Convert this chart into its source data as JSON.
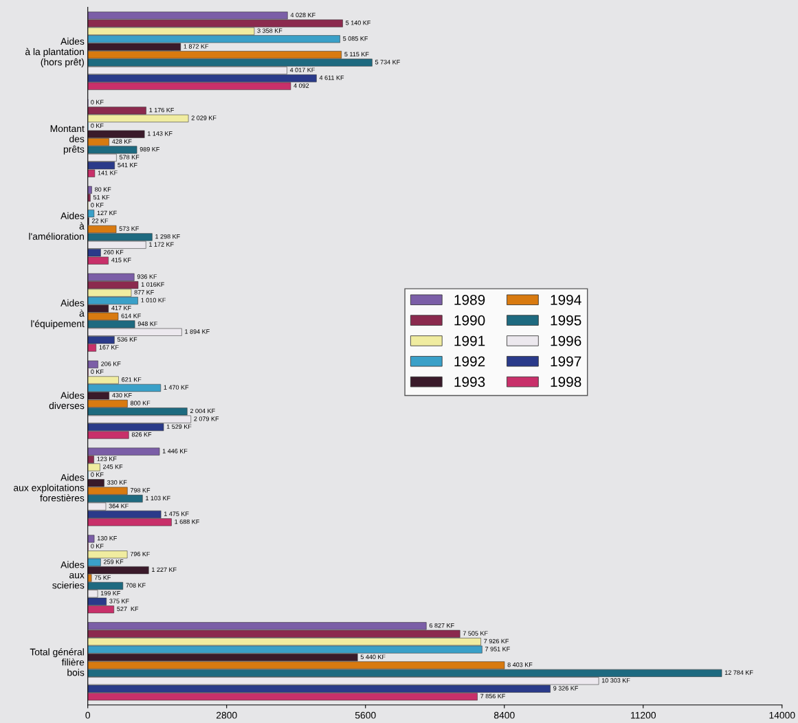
{
  "chart_data": {
    "type": "bar",
    "orientation": "horizontal",
    "categories": [
      "Aides\nà la plantation\n(hors prêt)",
      "Montant\ndes\nprêts",
      "Aides\nà\nl'amélioration",
      "Aides\nà\nl'équipement",
      "Aides\ndiverses",
      "Aides\naux exploitations\nforestières",
      "Aides\naux\nscieries",
      "Total général\nfilière\nbois"
    ],
    "xlim": [
      0,
      14000
    ],
    "xticks": [
      0,
      2800,
      5600,
      8400,
      11200,
      14000
    ],
    "grid": false,
    "legend": "right",
    "series": [
      {
        "name": "1989",
        "color": "#7b5ea7",
        "values": [
          4028,
          0,
          80,
          936,
          206,
          1446,
          130,
          6827
        ],
        "value_labels": [
          "4 028 KF",
          "0 KF",
          "80 KF",
          "936 KF",
          "206 KF",
          "1 446 KF",
          "130 KF",
          "6 827 KF"
        ]
      },
      {
        "name": "1990",
        "color": "#8b2a4e",
        "values": [
          5140,
          1176,
          51,
          1016,
          0,
          123,
          0,
          7505
        ],
        "value_labels": [
          "5 140 KF",
          "1 176 KF",
          "51 KF",
          "1 016KF",
          "0 KF",
          "123 KF",
          "0 KF",
          "7 505 KF"
        ]
      },
      {
        "name": "1991",
        "color": "#f0eca0",
        "values": [
          3358,
          2029,
          0,
          877,
          621,
          245,
          796,
          7926
        ],
        "value_labels": [
          "3 358 KF",
          "2 029 KF",
          "0 KF",
          "877 KF",
          "621 KF",
          "245 KF",
          "796 KF",
          "7 926 KF"
        ]
      },
      {
        "name": "1992",
        "color": "#3aa0c8",
        "values": [
          5085,
          0,
          127,
          1010,
          1470,
          0,
          259,
          7951
        ],
        "value_labels": [
          "5 085 KF",
          "0 KF",
          "127 KF",
          "1 010 KF",
          "1 470 KF",
          "0 KF",
          "259 KF",
          "7 951 KF"
        ]
      },
      {
        "name": "1993",
        "color": "#3a1a2a",
        "values": [
          1872,
          1143,
          22,
          417,
          430,
          330,
          1227,
          5440
        ],
        "value_labels": [
          "1 872 KF",
          "1 143 KF",
          "22 KF",
          "417 KF",
          "430 KF",
          "330 KF",
          "1 227 KF",
          "5 440 KF"
        ]
      },
      {
        "name": "1994",
        "color": "#d87a10",
        "values": [
          5115,
          428,
          573,
          614,
          800,
          798,
          75,
          8403
        ],
        "value_labels": [
          "5 115 KF",
          "428 KF",
          "573 KF",
          "614 KF",
          "800 KF",
          "798 KF",
          "75 KF",
          "8 403 KF"
        ]
      },
      {
        "name": "1995",
        "color": "#1e6a80",
        "values": [
          5734,
          989,
          1298,
          948,
          2004,
          1103,
          708,
          12784
        ],
        "value_labels": [
          "5 734 KF",
          "989 KF",
          "1 298 KF",
          "948 KF",
          "2 004 KF",
          "1 103 KF",
          "708 KF",
          "12 784 KF"
        ]
      },
      {
        "name": "1996",
        "color": "#ece8ee",
        "values": [
          4017,
          578,
          1172,
          1894,
          2079,
          364,
          199,
          10303
        ],
        "value_labels": [
          "4 017 KF",
          "578 KF",
          "1 172 KF",
          "1 894 KF",
          "2 079 KF",
          "364 KF",
          "199 KF",
          "10 303 KF"
        ]
      },
      {
        "name": "1997",
        "color": "#2a3a8a",
        "values": [
          4611,
          541,
          260,
          536,
          1529,
          1475,
          375,
          9326
        ],
        "value_labels": [
          "4 611 KF",
          "541 KF",
          "260 KF",
          "536 KF",
          "1 529 KF",
          "1 475 KF",
          "375 KF",
          "9 326 KF"
        ]
      },
      {
        "name": "1998",
        "color": "#c8306a",
        "values": [
          4092,
          141,
          415,
          167,
          826,
          1688,
          527,
          7856
        ],
        "value_labels": [
          "4 092",
          "141 KF",
          "415 KF",
          "167 KF",
          "826 KF",
          "1 688 KF",
          "527  KF",
          "7 856 KF"
        ]
      }
    ]
  }
}
